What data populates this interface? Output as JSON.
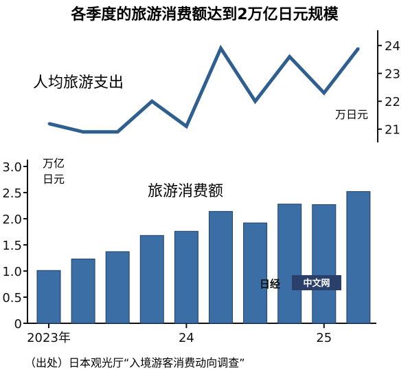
{
  "chart_data": [
    {
      "type": "line",
      "title": "人均旅游支出",
      "unit": "万日元",
      "ylim": [
        20.5,
        24.4
      ],
      "yticks": [
        21,
        22,
        23,
        24
      ],
      "axis_position": "right",
      "values": [
        21.2,
        20.9,
        20.9,
        22.0,
        21.1,
        23.9,
        22.0,
        23.6,
        22.3,
        23.9
      ]
    },
    {
      "type": "bar",
      "title": "旅游消费额",
      "unit_line1": "万亿",
      "unit_line2": "日元",
      "ylim": [
        0,
        3.0
      ],
      "yticks": [
        "0",
        "0.5",
        "1.0",
        "1.5",
        "2.0",
        "2.5",
        "3.0"
      ],
      "axis_position": "left",
      "values": [
        1.01,
        1.23,
        1.37,
        1.68,
        1.76,
        2.14,
        1.92,
        2.28,
        2.27,
        2.52
      ],
      "color": "#3b6ea5"
    }
  ],
  "headline": "各季度的旅游消费额达到2万亿日元规模",
  "x_labels": [
    {
      "index": 0,
      "text": "2023年"
    },
    {
      "index": 4,
      "text": "24"
    },
    {
      "index": 8,
      "text": "25"
    }
  ],
  "source": "（出处）日本观光厅“入境游客消费动向调查”",
  "logo": {
    "mark": "日经",
    "text": "中文网"
  }
}
